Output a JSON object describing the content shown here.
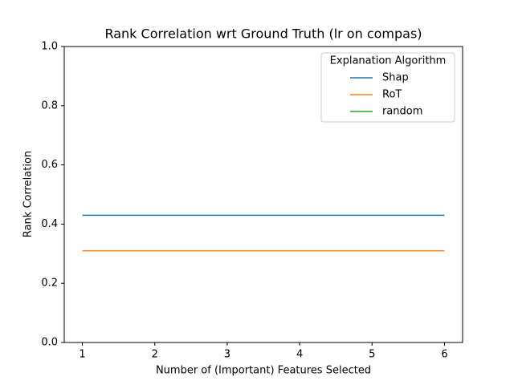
{
  "chart_data": {
    "type": "line",
    "title": "Rank Correlation wrt Ground Truth (lr on compas)",
    "xlabel": "Number of (Important) Features Selected",
    "ylabel": "Rank Correlation",
    "x": [
      1,
      2,
      3,
      4,
      5,
      6
    ],
    "series": [
      {
        "name": "Shap",
        "color": "#1f77b4",
        "values": [
          0.43,
          0.43,
          0.43,
          0.43,
          0.43,
          0.43
        ]
      },
      {
        "name": "RoT",
        "color": "#ff7f0e",
        "values": [
          0.31,
          0.31,
          0.31,
          0.31,
          0.31,
          0.31
        ]
      },
      {
        "name": "random",
        "color": "#2ca02c",
        "values": [
          null,
          null,
          null,
          null,
          null,
          null
        ]
      }
    ],
    "xlim": [
      0.75,
      6.25
    ],
    "xticks": [
      1,
      2,
      3,
      4,
      5,
      6
    ],
    "ylim": [
      0,
      1
    ],
    "yticks": [
      {
        "value": 0,
        "label": "0.0"
      },
      {
        "value": 0.2,
        "label": "0.2"
      },
      {
        "value": 0.4,
        "label": "0.4"
      },
      {
        "value": 0.6,
        "label": "0.6"
      },
      {
        "value": 0.8,
        "label": "0.8"
      },
      {
        "value": 1,
        "label": "1.0"
      }
    ],
    "legend_title": "Explanation Algorithm",
    "legend": "upper right"
  }
}
